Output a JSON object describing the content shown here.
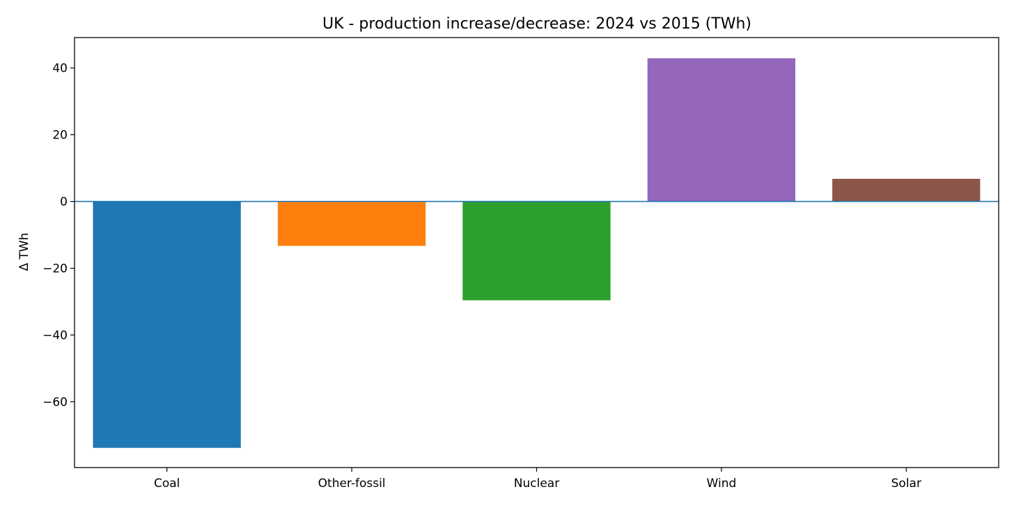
{
  "chart_data": {
    "type": "bar",
    "title": "UK - production increase/decrease: 2024 vs 2015 (TWh)",
    "xlabel": "",
    "ylabel": "Δ TWh",
    "categories": [
      "Coal",
      "Other-fossil",
      "Nuclear",
      "Wind",
      "Solar"
    ],
    "values": [
      -73.8,
      -13.3,
      -29.6,
      42.9,
      6.8
    ],
    "colors": [
      "#1f77b4",
      "#ff7f0e",
      "#2ca02c",
      "#9467bd",
      "#8c564b"
    ],
    "ylim": [
      -79.7,
      49.1
    ],
    "yticks": [
      40,
      20,
      0,
      -20,
      -40,
      -60
    ],
    "ytick_labels": [
      "40",
      "20",
      "0",
      "−20",
      "−40",
      "−60"
    ],
    "zero_line_color": "#1f77b4",
    "grid": false,
    "legend": "none"
  }
}
